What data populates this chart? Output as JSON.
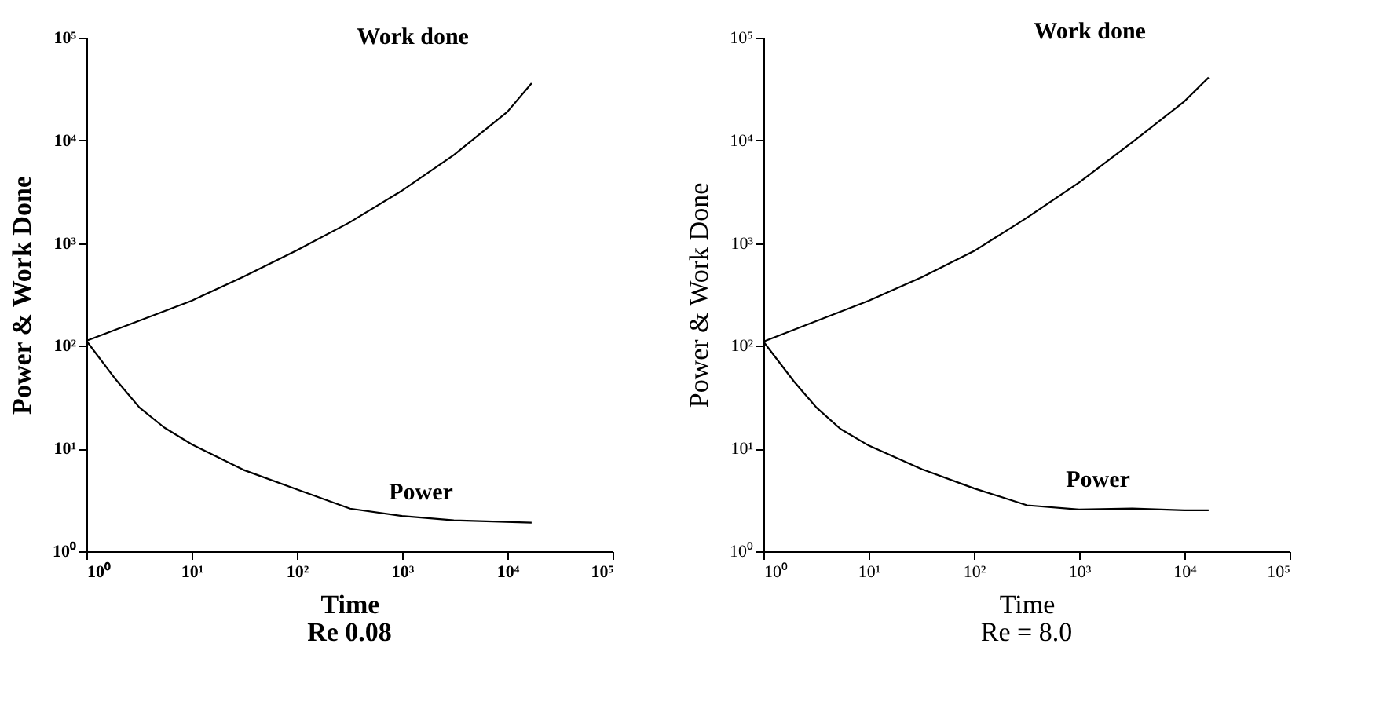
{
  "chart_data": [
    {
      "type": "line",
      "xlabel": "Time",
      "ylabel": "Power & Work Done",
      "annotations": [
        "Re 0.08"
      ],
      "log": "xy",
      "grid": false,
      "legend": false,
      "marker": "none",
      "line_style": "solid",
      "xlim": [
        1,
        100000
      ],
      "ylim": [
        1,
        100000
      ],
      "xticks": [
        {
          "value": 1,
          "label": "10⁰"
        },
        {
          "value": 10,
          "label": "10¹"
        },
        {
          "value": 100,
          "label": "10²"
        },
        {
          "value": 1000,
          "label": "10³"
        },
        {
          "value": 10000,
          "label": "10⁴"
        },
        {
          "value": 100000,
          "label": "10⁵"
        }
      ],
      "yticks": [
        {
          "value": 1,
          "label": "10⁰"
        },
        {
          "value": 10,
          "label": "10¹"
        },
        {
          "value": 100,
          "label": "10²"
        },
        {
          "value": 1000,
          "label": "10³"
        },
        {
          "value": 10000,
          "label": "10⁴"
        },
        {
          "value": 100000,
          "label": "10⁵"
        }
      ],
      "series": [
        {
          "name": "Work done",
          "color": "#000000",
          "x": [
            1,
            10,
            31,
            100,
            320,
            1000,
            3100,
            10000,
            17000
          ],
          "values": [
            112,
            275,
            470,
            850,
            1600,
            3250,
            7200,
            19000,
            36000
          ]
        },
        {
          "name": "Power",
          "color": "#000000",
          "x": [
            1,
            1.9,
            3.2,
            5.5,
            10,
            31,
            100,
            320,
            1000,
            3100,
            17000
          ],
          "values": [
            112,
            47,
            25,
            16,
            11,
            6.2,
            4.0,
            2.6,
            2.2,
            2.0,
            1.9
          ]
        }
      ]
    },
    {
      "type": "line",
      "xlabel": "Time",
      "ylabel": "Power & Work Done",
      "annotations": [
        "Re = 8.0"
      ],
      "log": "xy",
      "grid": false,
      "legend": false,
      "marker": "none",
      "line_style": "solid",
      "xlim": [
        1,
        100000
      ],
      "ylim": [
        1,
        100000
      ],
      "xticks": [
        {
          "value": 1,
          "label": "10⁰"
        },
        {
          "value": 10,
          "label": "10¹"
        },
        {
          "value": 100,
          "label": "10²"
        },
        {
          "value": 1000,
          "label": "10³"
        },
        {
          "value": 10000,
          "label": "10⁴"
        },
        {
          "value": 100000,
          "label": "10⁵"
        }
      ],
      "yticks": [
        {
          "value": 1,
          "label": "10⁰"
        },
        {
          "value": 10,
          "label": "10¹"
        },
        {
          "value": 100,
          "label": "10²"
        },
        {
          "value": 1000,
          "label": "10³"
        },
        {
          "value": 10000,
          "label": "10⁴"
        },
        {
          "value": 100000,
          "label": "10⁵"
        }
      ],
      "series": [
        {
          "name": "Work done",
          "color": "#000000",
          "x": [
            1,
            10,
            32,
            100,
            320,
            1000,
            3200,
            10000,
            17000
          ],
          "values": [
            110,
            275,
            465,
            835,
            1770,
            3900,
            9600,
            24000,
            41000
          ]
        },
        {
          "name": "Power",
          "color": "#000000",
          "x": [
            1,
            1.95,
            3.2,
            5.4,
            10,
            32,
            100,
            320,
            1000,
            3200,
            10000,
            17000
          ],
          "values": [
            110,
            45,
            25,
            15.5,
            10.7,
            6.3,
            4.1,
            2.8,
            2.55,
            2.6,
            2.5,
            2.5
          ]
        }
      ]
    }
  ]
}
